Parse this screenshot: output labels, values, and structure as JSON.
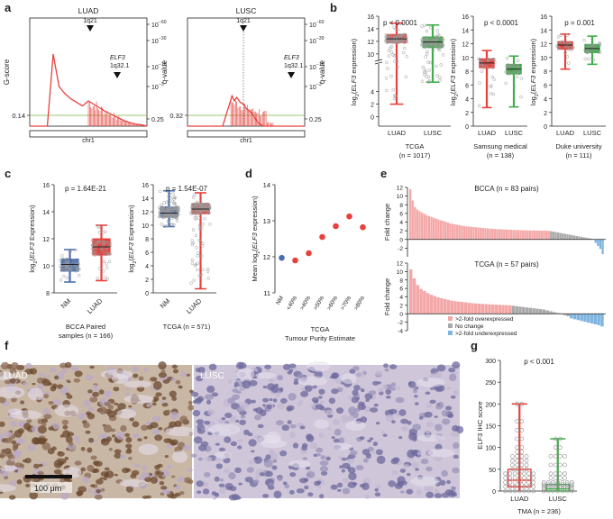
{
  "figure": {
    "panel_letters": [
      "a",
      "b",
      "c",
      "d",
      "e",
      "f",
      "g"
    ]
  },
  "chart_data": [
    {
      "panel": "a",
      "type": "line",
      "title": "LUAD",
      "ylabel": "G-score",
      "y2label": "q-value",
      "xlabel": "chr1",
      "yticks": [
        "0.14"
      ],
      "y2ticks": [
        "10^-60",
        "10^-30",
        "10^-10",
        "10^-3",
        "0.25"
      ],
      "annotations": [
        {
          "label": "1q21"
        },
        {
          "label": "ELF3 1q32.1"
        }
      ],
      "series": [
        {
          "name": "G-score",
          "x": [
            0.0,
            0.05,
            0.1,
            0.15,
            0.2,
            0.25,
            0.3,
            0.35,
            0.4,
            0.45,
            0.5,
            0.55,
            0.6,
            0.65,
            0.7,
            0.75,
            0.8,
            0.85,
            0.9,
            0.95,
            1.0
          ],
          "values": [
            0,
            0,
            0,
            0,
            1.0,
            0.55,
            0.45,
            0.38,
            0.33,
            0.28,
            0.35,
            0.3,
            0.25,
            0.2,
            0.16,
            0.12,
            0.08,
            0.05,
            0.03,
            0.02,
            0
          ]
        }
      ]
    },
    {
      "panel": "a",
      "type": "line",
      "title": "LUSC",
      "ylabel": "",
      "y2label": "q-value",
      "xlabel": "chr1",
      "yticks": [
        "0.32"
      ],
      "y2ticks": [
        "10^-60",
        "10^-30",
        "10^-10",
        "10^-3",
        "0.25"
      ],
      "annotations": [
        {
          "label": "1q21"
        },
        {
          "label": "ELF3 1q32.1"
        }
      ],
      "series": [
        {
          "name": "G-score",
          "x": [
            0.0,
            0.1,
            0.2,
            0.3,
            0.38,
            0.4,
            0.42,
            0.45,
            0.48,
            0.5,
            0.52,
            0.55,
            0.6,
            0.65,
            0.7,
            0.8,
            0.9,
            1.0
          ],
          "values": [
            0,
            0,
            0,
            0,
            0.42,
            0.35,
            0.4,
            0.33,
            0.3,
            0.25,
            0.22,
            0.18,
            0.05,
            0,
            0,
            0,
            0,
            0
          ]
        }
      ]
    },
    {
      "panel": "b",
      "type": "box",
      "title": "TCGA (n = 1017)",
      "pvalue": "p < 0.0001",
      "ylabel": "log2(ELF3 expression)",
      "categories": [
        "LUAD",
        "LUSC"
      ],
      "yticks": [
        0,
        2,
        4,
        10,
        12,
        14,
        16
      ],
      "boxes": [
        {
          "min": 2,
          "q1": 11.8,
          "median": 12.4,
          "q3": 13.1,
          "max": 14.9
        },
        {
          "min": 5.5,
          "q1": 11.0,
          "median": 11.9,
          "q3": 12.7,
          "max": 14.6
        }
      ]
    },
    {
      "panel": "b",
      "type": "box",
      "title": "Samsung medical (n = 138)",
      "pvalue": "p < 0.0001",
      "ylabel": "log2(ELF3 expression)",
      "categories": [
        "LUAD",
        "LUSC"
      ],
      "yticks": [
        0,
        2,
        4,
        6,
        8,
        10,
        12,
        14,
        16
      ],
      "boxes": [
        {
          "min": 2.7,
          "q1": 8.5,
          "median": 9.2,
          "q3": 9.8,
          "max": 11.0
        },
        {
          "min": 2.8,
          "q1": 7.6,
          "median": 8.3,
          "q3": 9.0,
          "max": 10.2
        }
      ]
    },
    {
      "panel": "b",
      "type": "box",
      "title": "Duke university (n = 111)",
      "pvalue": "p = 0.001",
      "ylabel": "log2(ELF3 expression)",
      "categories": [
        "LUAD",
        "LUSC"
      ],
      "yticks": [
        0,
        2,
        4,
        6,
        8,
        10,
        12,
        14,
        16
      ],
      "boxes": [
        {
          "min": 8.3,
          "q1": 11.2,
          "median": 11.8,
          "q3": 12.3,
          "max": 13.4
        },
        {
          "min": 9.0,
          "q1": 10.7,
          "median": 11.3,
          "q3": 11.9,
          "max": 13.1
        }
      ]
    },
    {
      "panel": "c",
      "type": "box",
      "title": "BCCA Paired samples (n = 166)",
      "pvalue": "p = 1.64E-21",
      "ylabel": "log2(ELF3 Expression)",
      "categories": [
        "NM",
        "LUAD"
      ],
      "yticks": [
        8,
        10,
        12,
        14,
        16
      ],
      "boxes": [
        {
          "min": 8.8,
          "q1": 9.6,
          "median": 10.1,
          "q3": 10.5,
          "max": 11.2
        },
        {
          "min": 8.9,
          "q1": 10.8,
          "median": 11.4,
          "q3": 12.0,
          "max": 13.0
        }
      ]
    },
    {
      "panel": "c",
      "type": "box",
      "title": "TCGA (n = 571)",
      "pvalue": "p = 1.54E-07",
      "ylabel": "log2(ELF3 Expression)",
      "categories": [
        "NM",
        "LUAD"
      ],
      "yticks": [
        0,
        2,
        4,
        6,
        8,
        10,
        12,
        14,
        16
      ],
      "boxes": [
        {
          "min": 9.8,
          "q1": 11.2,
          "median": 11.8,
          "q3": 12.7,
          "max": 15.1
        },
        {
          "min": 0.6,
          "q1": 11.7,
          "median": 12.4,
          "q3": 13.2,
          "max": 14.8
        }
      ]
    },
    {
      "panel": "d",
      "type": "scatter",
      "title": "TCGA Tumour Purity Estimate",
      "ylabel": "Mean log2(ELF3 expression)",
      "xlabel": "TCGA Tumour Purity Estimate",
      "categories": [
        "NM",
        "<40%",
        ">40%",
        ">50%",
        ">60%",
        ">70%",
        ">80%"
      ],
      "values": [
        11.97,
        11.9,
        12.1,
        12.55,
        12.85,
        13.12,
        12.82
      ],
      "ylim": [
        11,
        14
      ],
      "yticks": [
        11,
        12,
        13,
        14
      ]
    },
    {
      "panel": "e",
      "type": "bar",
      "title": "BCCA (n = 83 pairs)",
      "ylabel": "Fold change",
      "ylim": [
        -4,
        12
      ],
      "yticks": [
        -2,
        0,
        2,
        4,
        6,
        8,
        10,
        12
      ],
      "counts": {
        "overexpressed": 60,
        "no_change": 19,
        "underexpressed": 4
      },
      "values": [
        11.6,
        9.0,
        7.5,
        6.9,
        6.5,
        6.2,
        5.9,
        5.6,
        5.4,
        5.2,
        5.0,
        4.8,
        4.6,
        4.4,
        4.3,
        4.1,
        3.9,
        3.7,
        3.6,
        3.5,
        3.4,
        3.3,
        3.2,
        3.1,
        3.0,
        2.95,
        2.9,
        2.85,
        2.8,
        2.75,
        2.7,
        2.65,
        2.6,
        2.55,
        2.5,
        2.45,
        2.4,
        2.38,
        2.35,
        2.32,
        2.3,
        2.28,
        2.25,
        2.22,
        2.2,
        2.18,
        2.16,
        2.14,
        2.12,
        2.1,
        2.09,
        2.08,
        2.07,
        2.06,
        2.05,
        2.04,
        2.03,
        2.02,
        2.01,
        2.005,
        1.9,
        1.8,
        1.7,
        1.6,
        1.5,
        1.4,
        1.3,
        1.2,
        1.1,
        1.0,
        0.9,
        0.8,
        0.7,
        0.6,
        0.5,
        0.4,
        0.3,
        0.2,
        0.1,
        -0.8,
        -1.5,
        -2.2,
        -3.4
      ]
    },
    {
      "panel": "e",
      "type": "bar",
      "title": "TCGA (n = 57 pairs)",
      "ylabel": "Fold change",
      "ylim": [
        -4,
        12
      ],
      "yticks": [
        -4,
        -2,
        0,
        2,
        4,
        6,
        8,
        10,
        12
      ],
      "counts": {
        "overexpressed": 30,
        "no_change": 17,
        "underexpressed": 10
      },
      "values": [
        10.5,
        8.4,
        6.8,
        5.9,
        5.4,
        4.9,
        4.5,
        4.2,
        3.9,
        3.7,
        3.5,
        3.3,
        3.1,
        3.0,
        2.9,
        2.8,
        2.7,
        2.6,
        2.5,
        2.45,
        2.4,
        2.35,
        2.3,
        2.25,
        2.2,
        2.15,
        2.1,
        2.07,
        2.04,
        2.01,
        1.9,
        1.8,
        1.7,
        1.6,
        1.5,
        1.4,
        1.3,
        1.2,
        1.1,
        1.0,
        0.8,
        0.6,
        0.4,
        0.2,
        0.1,
        -0.3,
        -0.6,
        -1.1,
        -1.3,
        -1.5,
        -1.7,
        -1.9,
        -2.1,
        -2.3,
        -2.5,
        -2.7,
        -3.0
      ],
      "legend": [
        "> 2-fold overexpressed",
        "No change",
        "> 2-fold underexpressed"
      ]
    },
    {
      "panel": "g",
      "type": "box",
      "title": "TMA (n = 236)",
      "pvalue": "p < 0.001",
      "ylabel": "ELF3 IHC score",
      "categories": [
        "LUAD",
        "LUSC"
      ],
      "yticks": [
        0,
        50,
        100,
        150,
        200,
        250,
        300
      ],
      "ylim": [
        0,
        300
      ],
      "boxes": [
        {
          "min": 0,
          "q1": 10,
          "median": 25,
          "q3": 50,
          "max": 200
        },
        {
          "min": 0,
          "q1": 0,
          "median": 5,
          "q3": 15,
          "max": 120
        }
      ]
    }
  ],
  "labels": {
    "a_luad_title": "LUAD",
    "a_lusc_title": "LUSC",
    "a_ylabel": "G-score",
    "a_y2label": "q-value",
    "a_chr": "chr1",
    "a_luad_1q21": "1q21",
    "a_luad_elf3": "ELF3",
    "a_luad_1q32": "1q32.1",
    "a_lusc_1q21": "1q21",
    "a_lusc_elf3": "ELF3",
    "a_lusc_1q32": "1q32.1",
    "a_luad_y014": "0.14",
    "a_lusc_y032": "0.32",
    "a_q60": "10",
    "a_q60e": "−60",
    "a_q30": "10",
    "a_q30e": "−30",
    "a_q10": "10",
    "a_q10e": "−10",
    "a_q3": "10",
    "a_q3e": "−3",
    "a_q025": "0.25",
    "b_ylabel_pre": "log",
    "b_ylabel_sub": "2",
    "b_ylabel_mid": "(",
    "b_ylabel_gene": "ELF3",
    "b_ylabel_post": " expression)",
    "b_tcga_p": "p < 0.0001",
    "b_tcga_name": "TCGA",
    "b_tcga_n": "(n = 1017)",
    "b_sam_p": "p < 0.0001",
    "b_sam_name": "Samsung medical",
    "b_sam_n": "(n = 138)",
    "b_duke_p": "p = 0.001",
    "b_duke_name": "Duke university",
    "b_duke_n": "(n = 111)",
    "luad": "LUAD",
    "lusc": "LUSC",
    "nm": "NM",
    "c_bcca_p": "p = 1.64E-21",
    "c_tcga_p": "p = 1.54E-07",
    "c_bcca_name": "BCCA Paired",
    "c_bcca_n": "samples (n = 166)",
    "c_tcga_name": "TCGA (n = 571)",
    "c_ylabel_post": " Expression)",
    "d_ylabel_pre": "Mean log",
    "d_xlabel1": "TCGA",
    "d_xlabel2": "Tumour Purity   Estimate",
    "e_bcca_title": "BCCA (n = 83 pairs)",
    "e_tcga_title": "TCGA (n = 57 pairs)",
    "e_ylabel": "Fold change",
    "e_leg1": ">2-fold overexpressed",
    "e_leg2": "No change",
    "e_leg3": ">2-fold underexpressed",
    "f_luad": "LUAD",
    "f_lusc": "LUSC",
    "f_scale": "100 μm",
    "g_p": "p < 0.001",
    "g_ylabel": "ELF3 IHC score",
    "g_xlabel": "TMA (n = 236)"
  },
  "colors": {
    "red": "#e8413c",
    "redfill": "#f26b64",
    "blue": "#4a6fb0",
    "green": "#3fad4a",
    "gray": "#9a9a9a",
    "pink": "#f4a7a7",
    "lightblue": "#7fb5e0"
  }
}
